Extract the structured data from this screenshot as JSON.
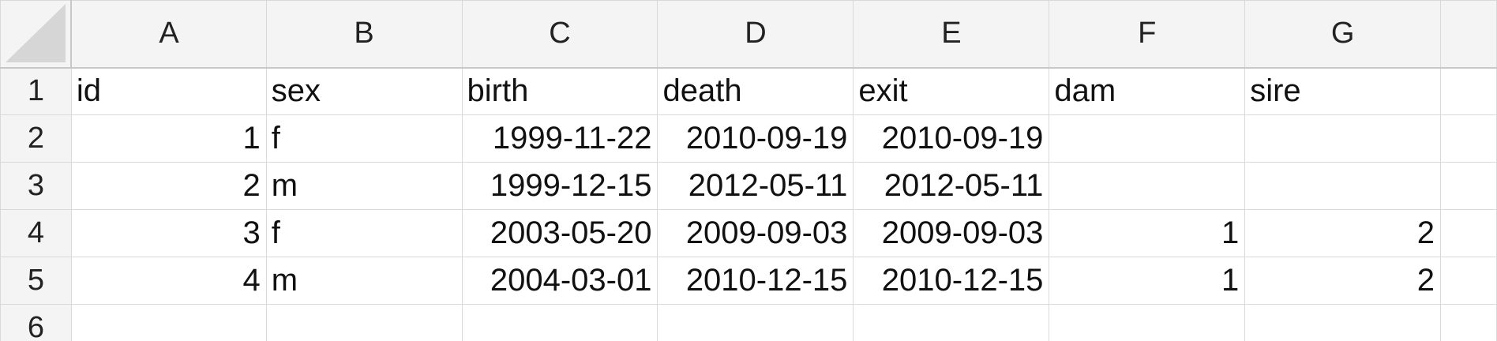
{
  "spreadsheet": {
    "column_headers": [
      "A",
      "B",
      "C",
      "D",
      "E",
      "F",
      "G",
      ""
    ],
    "row_headers": [
      "1",
      "2",
      "3",
      "4",
      "5",
      "6"
    ],
    "rows": [
      [
        "id",
        "sex",
        "birth",
        "death",
        "exit",
        "dam",
        "sire",
        ""
      ],
      [
        "1",
        "f",
        "1999-11-22",
        "2010-09-19",
        "2010-09-19",
        "",
        "",
        ""
      ],
      [
        "2",
        "m",
        "1999-12-15",
        "2012-05-11",
        "2012-05-11",
        "",
        "",
        ""
      ],
      [
        "3",
        "f",
        "2003-05-20",
        "2009-09-03",
        "2009-09-03",
        "1",
        "2",
        ""
      ],
      [
        "4",
        "m",
        "2004-03-01",
        "2010-12-15",
        "2010-12-15",
        "1",
        "2",
        ""
      ],
      [
        "",
        "",
        "",
        "",
        "",
        "",
        "",
        ""
      ]
    ]
  },
  "colors": {
    "header_background": "#f4f4f4",
    "grid_line": "#d9d9d9",
    "header_border": "#c8c8c8"
  }
}
